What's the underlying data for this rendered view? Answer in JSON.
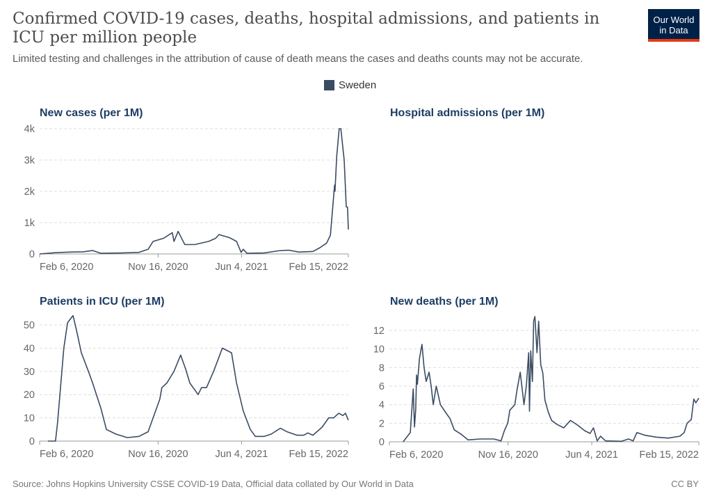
{
  "header": {
    "title": "Confirmed COVID-19 cases, deaths, hospital admissions, and patients in ICU per million people",
    "subtitle": "Limited testing and challenges in the attribution of cause of death means the cases and deaths counts may not be accurate.",
    "logo_line1": "Our World",
    "logo_line2": "in Data"
  },
  "legend": {
    "label": "Sweden",
    "color": "#3a4b63"
  },
  "footer": {
    "source": "Source: Johns Hopkins University CSSE COVID-19 Data, Official data collated by Our World in Data",
    "license": "CC BY"
  },
  "chart_data": [
    {
      "type": "line",
      "title": "New cases (per 1M)",
      "x_unit": "days since Feb 6, 2020",
      "xlim": [
        0,
        740
      ],
      "xticks": [
        {
          "day": 0,
          "label": "Feb 6, 2020"
        },
        {
          "day": 284,
          "label": "Nov 16, 2020"
        },
        {
          "day": 484,
          "label": "Jun 4, 2021"
        },
        {
          "day": 740,
          "label": "Feb 15, 2022"
        }
      ],
      "ylim": [
        0,
        4000
      ],
      "yticks": [
        {
          "v": 0,
          "label": "0"
        },
        {
          "v": 1000,
          "label": "1k"
        },
        {
          "v": 2000,
          "label": "2k"
        },
        {
          "v": 3000,
          "label": "3k"
        },
        {
          "v": 4000,
          "label": "4k"
        }
      ],
      "grid": true,
      "series": [
        {
          "name": "Sweden",
          "points": [
            [
              0,
              0
            ],
            [
              38,
              40
            ],
            [
              72,
              60
            ],
            [
              105,
              70
            ],
            [
              127,
              110
            ],
            [
              147,
              20
            ],
            [
              197,
              30
            ],
            [
              238,
              50
            ],
            [
              260,
              150
            ],
            [
              272,
              400
            ],
            [
              297,
              500
            ],
            [
              318,
              680
            ],
            [
              322,
              400
            ],
            [
              332,
              720
            ],
            [
              338,
              560
            ],
            [
              348,
              300
            ],
            [
              372,
              300
            ],
            [
              405,
              400
            ],
            [
              422,
              500
            ],
            [
              430,
              620
            ],
            [
              455,
              520
            ],
            [
              472,
              400
            ],
            [
              483,
              50
            ],
            [
              488,
              150
            ],
            [
              497,
              20
            ],
            [
              538,
              30
            ],
            [
              572,
              100
            ],
            [
              597,
              120
            ],
            [
              622,
              60
            ],
            [
              655,
              80
            ],
            [
              672,
              200
            ],
            [
              688,
              350
            ],
            [
              697,
              600
            ],
            [
              702,
              1400
            ],
            [
              707,
              2200
            ],
            [
              708,
              2000
            ],
            [
              712,
              3100
            ],
            [
              718,
              4000
            ],
            [
              722,
              4000
            ],
            [
              730,
              3000
            ],
            [
              735,
              1500
            ],
            [
              738,
              1500
            ],
            [
              740,
              780
            ]
          ]
        }
      ]
    },
    {
      "type": "line",
      "title": "Hospital admissions (per 1M)",
      "series": []
    },
    {
      "type": "line",
      "title": "Patients in ICU (per 1M)",
      "x_unit": "days since Feb 6, 2020",
      "xlim": [
        0,
        740
      ],
      "xticks": [
        {
          "day": 0,
          "label": "Feb 6, 2020"
        },
        {
          "day": 284,
          "label": "Nov 16, 2020"
        },
        {
          "day": 484,
          "label": "Jun 4, 2021"
        },
        {
          "day": 740,
          "label": "Feb 15, 2022"
        }
      ],
      "ylim": [
        0,
        50
      ],
      "yticks": [
        {
          "v": 0,
          "label": "0"
        },
        {
          "v": 10,
          "label": "10"
        },
        {
          "v": 20,
          "label": "20"
        },
        {
          "v": 30,
          "label": "30"
        },
        {
          "v": 40,
          "label": "40"
        },
        {
          "v": 50,
          "label": "50"
        }
      ],
      "grid": true,
      "series": [
        {
          "name": "Sweden",
          "points": [
            [
              20,
              0
            ],
            [
              38,
              0
            ],
            [
              43,
              8
            ],
            [
              58,
              40
            ],
            [
              67,
              51
            ],
            [
              80,
              54
            ],
            [
              88,
              48
            ],
            [
              100,
              38
            ],
            [
              117,
              30
            ],
            [
              127,
              25
            ],
            [
              147,
              14
            ],
            [
              160,
              5
            ],
            [
              183,
              3
            ],
            [
              210,
              1.5
            ],
            [
              238,
              2
            ],
            [
              260,
              4
            ],
            [
              272,
              10
            ],
            [
              288,
              18
            ],
            [
              293,
              23
            ],
            [
              305,
              25
            ],
            [
              322,
              30
            ],
            [
              338,
              37
            ],
            [
              350,
              31
            ],
            [
              360,
              25
            ],
            [
              380,
              20
            ],
            [
              388,
              23
            ],
            [
              400,
              23
            ],
            [
              417,
              30
            ],
            [
              438,
              40
            ],
            [
              460,
              38
            ],
            [
              472,
              25
            ],
            [
              488,
              13
            ],
            [
              505,
              5
            ],
            [
              517,
              2
            ],
            [
              538,
              2
            ],
            [
              555,
              3
            ],
            [
              577,
              5.5
            ],
            [
              593,
              4
            ],
            [
              617,
              2.5
            ],
            [
              633,
              2.5
            ],
            [
              643,
              3.5
            ],
            [
              655,
              2.5
            ],
            [
              677,
              6
            ],
            [
              693,
              10
            ],
            [
              705,
              10
            ],
            [
              717,
              12
            ],
            [
              727,
              11
            ],
            [
              733,
              12
            ],
            [
              740,
              9
            ]
          ]
        }
      ]
    },
    {
      "type": "line",
      "title": "New deaths (per 1M)",
      "x_unit": "days since Feb 6, 2020",
      "xlim": [
        0,
        740
      ],
      "xticks": [
        {
          "day": 0,
          "label": "Feb 6, 2020"
        },
        {
          "day": 284,
          "label": "Nov 16, 2020"
        },
        {
          "day": 484,
          "label": "Jun 4, 2021"
        },
        {
          "day": 740,
          "label": "Feb 15, 2022"
        }
      ],
      "ylim": [
        0,
        12
      ],
      "yticks": [
        {
          "v": 0,
          "label": "0"
        },
        {
          "v": 2,
          "label": "2"
        },
        {
          "v": 4,
          "label": "4"
        },
        {
          "v": 6,
          "label": "6"
        },
        {
          "v": 8,
          "label": "8"
        },
        {
          "v": 10,
          "label": "10"
        },
        {
          "v": 12,
          "label": "12"
        }
      ],
      "grid": true,
      "series": [
        {
          "name": "Sweden",
          "points": [
            [
              33,
              0
            ],
            [
              50,
              1
            ],
            [
              57,
              5.7
            ],
            [
              60,
              1.6
            ],
            [
              63,
              3.5
            ],
            [
              65,
              7.2
            ],
            [
              67,
              6.2
            ],
            [
              72,
              9
            ],
            [
              78,
              10.5
            ],
            [
              83,
              8
            ],
            [
              88,
              6.5
            ],
            [
              95,
              7.5
            ],
            [
              100,
              6
            ],
            [
              105,
              4
            ],
            [
              112,
              6
            ],
            [
              122,
              4
            ],
            [
              137,
              3
            ],
            [
              145,
              2.5
            ],
            [
              155,
              1.3
            ],
            [
              172,
              0.8
            ],
            [
              188,
              0.2
            ],
            [
              217,
              0.3
            ],
            [
              250,
              0.3
            ],
            [
              267,
              0.1
            ],
            [
              275,
              1.2
            ],
            [
              283,
              2
            ],
            [
              288,
              3.4
            ],
            [
              300,
              4
            ],
            [
              305,
              5.5
            ],
            [
              313,
              7.5
            ],
            [
              322,
              4
            ],
            [
              328,
              6.2
            ],
            [
              333,
              9.6
            ],
            [
              335,
              3.3
            ],
            [
              338,
              9.8
            ],
            [
              342,
              6.5
            ],
            [
              345,
              13
            ],
            [
              348,
              13.5
            ],
            [
              353,
              9.6
            ],
            [
              357,
              13
            ],
            [
              362,
              8.3
            ],
            [
              367,
              7.4
            ],
            [
              372,
              4.5
            ],
            [
              380,
              3.2
            ],
            [
              388,
              2.3
            ],
            [
              400,
              1.9
            ],
            [
              417,
              1.5
            ],
            [
              433,
              2.3
            ],
            [
              450,
              1.8
            ],
            [
              467,
              1.2
            ],
            [
              480,
              0.9
            ],
            [
              488,
              1.5
            ],
            [
              497,
              0.1
            ],
            [
              505,
              0.6
            ],
            [
              517,
              0.1
            ],
            [
              555,
              0.05
            ],
            [
              572,
              0.3
            ],
            [
              583,
              0.1
            ],
            [
              592,
              1
            ],
            [
              612,
              0.7
            ],
            [
              638,
              0.5
            ],
            [
              667,
              0.4
            ],
            [
              695,
              0.6
            ],
            [
              705,
              1
            ],
            [
              712,
              2
            ],
            [
              722,
              2.4
            ],
            [
              728,
              4.6
            ],
            [
              733,
              4.2
            ],
            [
              740,
              4.7
            ]
          ]
        }
      ]
    }
  ]
}
